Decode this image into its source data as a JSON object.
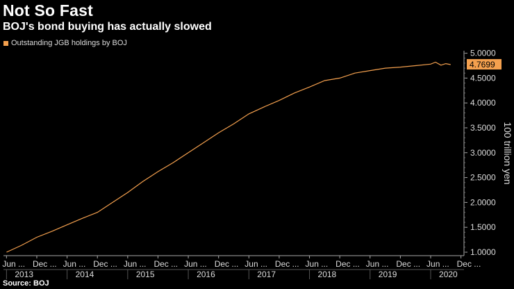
{
  "chart_data": {
    "type": "line",
    "title": "Not So Fast",
    "subtitle": "BOJ's bond buying has actually slowed",
    "source": "Source: BOJ",
    "ylabel": "100 trillion yen",
    "xlabel": "",
    "ylim": [
      0.93,
      5.05
    ],
    "yticks": [
      1.0,
      1.5,
      2.0,
      2.5,
      3.0,
      3.5,
      4.0,
      4.5,
      5.0
    ],
    "ytick_labels": [
      "1.0000",
      "1.5000",
      "2.0000",
      "2.5000",
      "3.0000",
      "3.5000",
      "4.0000",
      "4.5000",
      "5.0000"
    ],
    "x_range": [
      2013.0,
      2020.33
    ],
    "x_ticks": [
      {
        "x": 2013.0,
        "label": "Jun ..."
      },
      {
        "x": 2013.5,
        "label": "Dec ..."
      },
      {
        "x": 2014.0,
        "label": "Jun ..."
      },
      {
        "x": 2014.5,
        "label": "Dec ..."
      },
      {
        "x": 2015.0,
        "label": "Jun ..."
      },
      {
        "x": 2015.5,
        "label": "Dec ..."
      },
      {
        "x": 2016.0,
        "label": "Jun ..."
      },
      {
        "x": 2016.5,
        "label": "Dec ..."
      },
      {
        "x": 2017.0,
        "label": "Jun ..."
      },
      {
        "x": 2017.5,
        "label": "Dec ..."
      },
      {
        "x": 2018.0,
        "label": "Jun ..."
      },
      {
        "x": 2018.5,
        "label": "Dec ..."
      },
      {
        "x": 2019.0,
        "label": "Jun ..."
      },
      {
        "x": 2019.5,
        "label": "Dec ..."
      },
      {
        "x": 2020.0,
        "label": "Jun ..."
      },
      {
        "x": 2020.5,
        "label": "Dec ..."
      }
    ],
    "year_labels": [
      {
        "x": 2013.0,
        "label": "2013"
      },
      {
        "x": 2014.0,
        "label": "2014"
      },
      {
        "x": 2015.0,
        "label": "2015"
      },
      {
        "x": 2016.0,
        "label": "2016"
      },
      {
        "x": 2017.0,
        "label": "2017"
      },
      {
        "x": 2018.0,
        "label": "2018"
      },
      {
        "x": 2019.0,
        "label": "2019"
      },
      {
        "x": 2020.0,
        "label": "2020"
      }
    ],
    "series": [
      {
        "name": "Outstanding JGB holdings by BOJ",
        "color": "#f4a04e",
        "last_value_label": "4.7699",
        "x": [
          2013.0,
          2013.25,
          2013.5,
          2013.75,
          2014.0,
          2014.25,
          2014.5,
          2014.75,
          2015.0,
          2015.25,
          2015.5,
          2015.75,
          2016.0,
          2016.25,
          2016.5,
          2016.75,
          2017.0,
          2017.25,
          2017.5,
          2017.75,
          2018.0,
          2018.25,
          2018.5,
          2018.75,
          2019.0,
          2019.25,
          2019.5,
          2019.75,
          2020.0,
          2020.08,
          2020.17,
          2020.25,
          2020.33
        ],
        "values": [
          1.0,
          1.14,
          1.3,
          1.42,
          1.55,
          1.68,
          1.8,
          2.0,
          2.2,
          2.42,
          2.62,
          2.8,
          3.0,
          3.2,
          3.4,
          3.58,
          3.78,
          3.92,
          4.05,
          4.2,
          4.32,
          4.45,
          4.5,
          4.6,
          4.65,
          4.7,
          4.72,
          4.75,
          4.78,
          4.82,
          4.76,
          4.79,
          4.77
        ]
      }
    ]
  }
}
